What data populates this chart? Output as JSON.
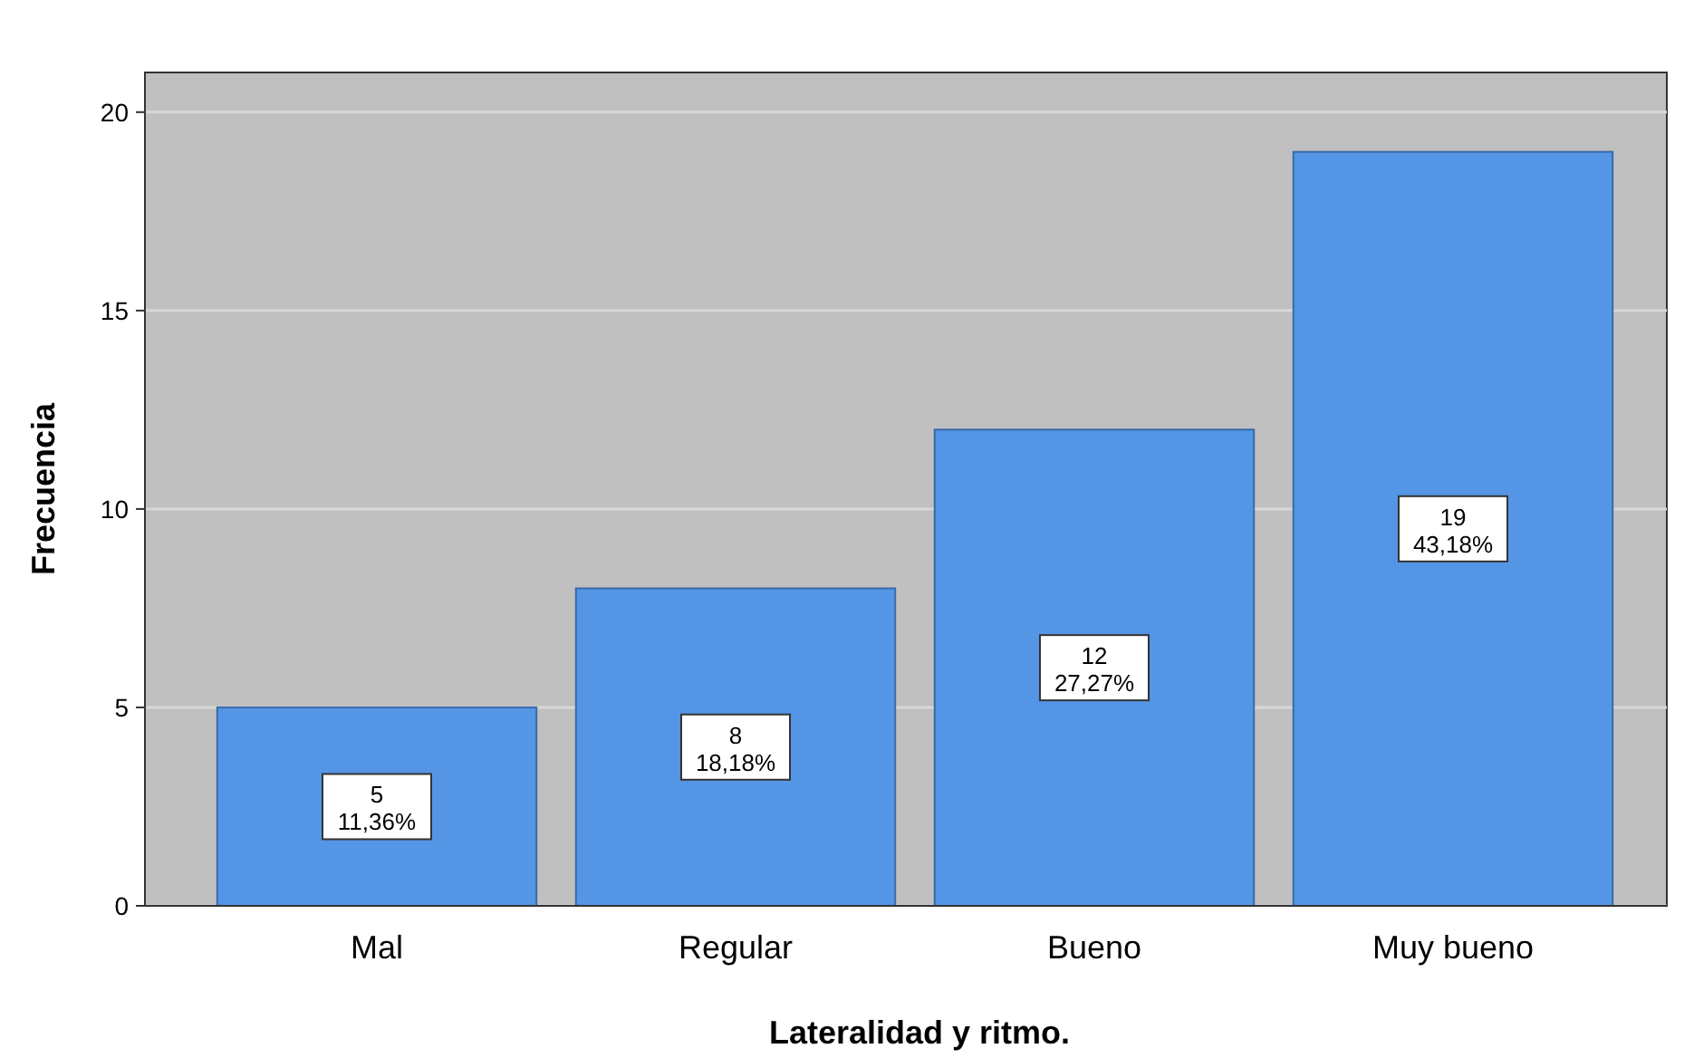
{
  "chart_data": {
    "type": "bar",
    "xlabel": "Lateralidad y ritmo.",
    "ylabel": "Frecuencia",
    "categories": [
      "Mal",
      "Regular",
      "Bueno",
      "Muy bueno"
    ],
    "values": [
      5,
      8,
      12,
      19
    ],
    "color": "#5595e5",
    "value_labels": [
      "5\n11,36%",
      "8\n18,18%",
      "12\n27,27%",
      "19\n43,18%"
    ],
    "ylim": [
      0,
      21
    ],
    "yticks": [
      0,
      5,
      10,
      15,
      20
    ],
    "grid": "y"
  }
}
